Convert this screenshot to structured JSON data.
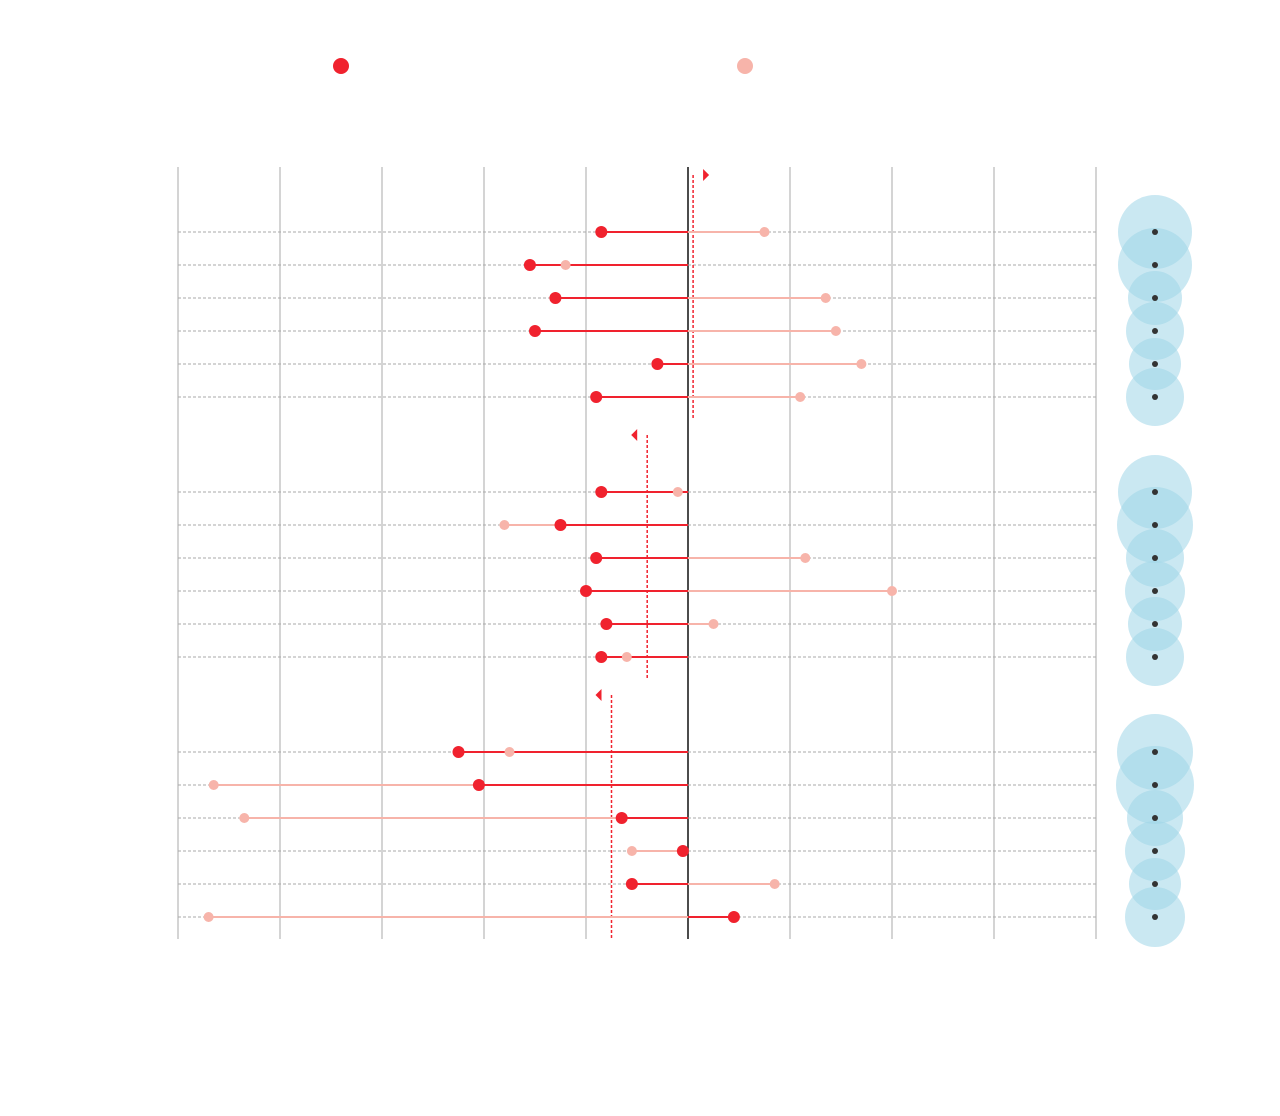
{
  "chart_data": {
    "type": "dumbbell",
    "xlim": [
      -50,
      40
    ],
    "xticks": [
      -50,
      -40,
      -30,
      -20,
      -10,
      0,
      10,
      20,
      30,
      40
    ],
    "grid": true,
    "series": [
      {
        "color": "#f0222e"
      },
      {
        "color": "#f7b4aa"
      }
    ],
    "mean_color": "#f0222e",
    "bubble_color": "#9fd6e8",
    "groups": [
      {
        "series": [
          {
            "values": [
              -8.5,
              -15.5,
              -13,
              -15,
              -3,
              -9
            ]
          },
          {
            "values": [
              7.5,
              -12,
              13.5,
              14.5,
              17,
              11
            ]
          }
        ],
        "mean": 0.5,
        "sizes": [
          37,
          37,
          27,
          29,
          26,
          29
        ]
      },
      {
        "series": [
          {
            "values": [
              -8.5,
              -12.5,
              -9,
              -10,
              -8,
              -8.5
            ]
          },
          {
            "values": [
              -1,
              -18,
              11.5,
              20,
              2.5,
              -6
            ]
          }
        ],
        "mean": -4,
        "sizes": [
          37,
          38,
          29,
          30,
          27,
          29
        ]
      },
      {
        "series": [
          {
            "values": [
              -22.5,
              -20.5,
              -6.5,
              -0.5,
              -5.5,
              4.5
            ]
          },
          {
            "values": [
              -17.5,
              -46.5,
              -43.5,
              -5.5,
              8.5,
              -47
            ]
          }
        ],
        "mean": -7.5,
        "sizes": [
          38,
          39,
          28,
          30,
          26,
          30
        ]
      }
    ]
  }
}
